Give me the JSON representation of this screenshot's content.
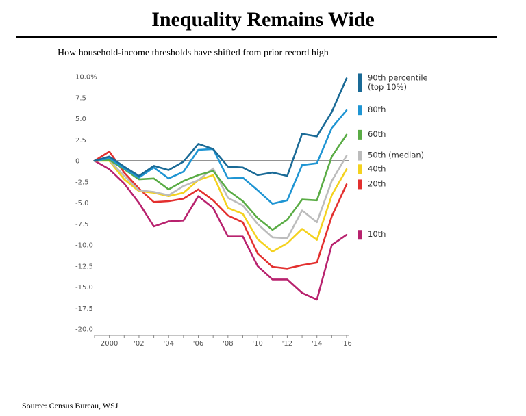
{
  "title": "Inequality Remains Wide",
  "subtitle": "How household-income thresholds have shifted from prior record high",
  "source": "Source: Census Bureau,  WSJ",
  "chart_data": {
    "type": "line",
    "title": "Inequality Remains Wide",
    "subtitle": "How household-income thresholds have shifted from prior record high",
    "xlabel": "",
    "ylabel": "",
    "x": [
      1999,
      2000,
      2001,
      2002,
      2003,
      2004,
      2005,
      2006,
      2007,
      2008,
      2009,
      2010,
      2011,
      2012,
      2013,
      2014,
      2015,
      2016
    ],
    "x_tick_values": [
      2000,
      2002,
      2004,
      2006,
      2008,
      2010,
      2012,
      2014,
      2016
    ],
    "x_tick_labels": [
      "2000",
      "'02",
      "'04",
      "'06",
      "'08",
      "'10",
      "'12",
      "'14",
      "'16"
    ],
    "xlim": [
      1999,
      2016
    ],
    "ylim": [
      -20,
      10
    ],
    "y_tick_values": [
      10,
      7.5,
      5,
      2.5,
      0,
      -2.5,
      -5,
      -7.5,
      -10,
      -12.5,
      -15,
      -17.5,
      -20
    ],
    "y_tick_labels": [
      "10.0%",
      "7.5",
      "5.0",
      "2.5",
      "0",
      "-2.5",
      "-5.0",
      "-7.5",
      "-10.0",
      "-12.5",
      "-15.0",
      "-17.5",
      "-20.0"
    ],
    "grid": false,
    "zero_line": true,
    "legend_position": "right",
    "series": [
      {
        "name": "90th percentile (top 10%)",
        "legend_lines": [
          "90th percentile",
          "(top 10%)"
        ],
        "color": "#1a6a96",
        "values": [
          0,
          0.5,
          -0.7,
          -1.8,
          -0.6,
          -1.1,
          -0.1,
          2.0,
          1.4,
          -0.7,
          -0.8,
          -1.7,
          -1.4,
          -1.8,
          3.2,
          2.9,
          5.8,
          9.8
        ]
      },
      {
        "name": "80th",
        "legend_lines": [
          "80th"
        ],
        "color": "#1f95d3",
        "values": [
          0,
          0.3,
          -0.9,
          -2.0,
          -0.8,
          -2.1,
          -1.3,
          1.3,
          1.4,
          -2.1,
          -2.0,
          -3.5,
          -5.1,
          -4.7,
          -0.5,
          -0.3,
          3.9,
          6.0
        ]
      },
      {
        "name": "60th",
        "legend_lines": [
          "60th"
        ],
        "color": "#5aac45",
        "values": [
          0,
          0.1,
          -1.0,
          -2.2,
          -2.1,
          -3.4,
          -2.4,
          -1.7,
          -1.2,
          -3.5,
          -4.8,
          -6.8,
          -8.2,
          -7.0,
          -4.6,
          -4.7,
          0.5,
          3.1
        ]
      },
      {
        "name": "50th (median)",
        "legend_lines": [
          "50th (median)"
        ],
        "color": "#bcbcbc",
        "values": [
          0,
          0.1,
          -1.8,
          -3.5,
          -3.7,
          -4.1,
          -3.0,
          -2.3,
          -0.9,
          -4.4,
          -5.3,
          -7.5,
          -9.1,
          -9.2,
          -5.9,
          -7.3,
          -2.4,
          0.6
        ]
      },
      {
        "name": "40th",
        "legend_lines": [
          "40th"
        ],
        "color": "#f4d21f",
        "values": [
          0,
          0.0,
          -2.2,
          -3.6,
          -3.8,
          -4.2,
          -3.8,
          -2.3,
          -1.7,
          -5.6,
          -6.3,
          -9.3,
          -10.8,
          -9.8,
          -8.1,
          -9.4,
          -4.1,
          -1.0
        ]
      },
      {
        "name": "20th",
        "legend_lines": [
          "20th"
        ],
        "color": "#e3302f",
        "values": [
          0,
          1.1,
          -1.4,
          -3.3,
          -4.9,
          -4.8,
          -4.5,
          -3.4,
          -4.7,
          -6.5,
          -7.3,
          -11.0,
          -12.6,
          -12.8,
          -12.4,
          -12.1,
          -6.6,
          -2.8
        ]
      },
      {
        "name": "10th",
        "legend_lines": [
          "10th"
        ],
        "color": "#b8226e",
        "values": [
          0,
          -1.0,
          -2.7,
          -5.0,
          -7.8,
          -7.2,
          -7.1,
          -4.2,
          -5.6,
          -9.0,
          -9.0,
          -12.5,
          -14.1,
          -14.1,
          -15.7,
          -16.5,
          -10.0,
          -8.8
        ]
      }
    ]
  }
}
